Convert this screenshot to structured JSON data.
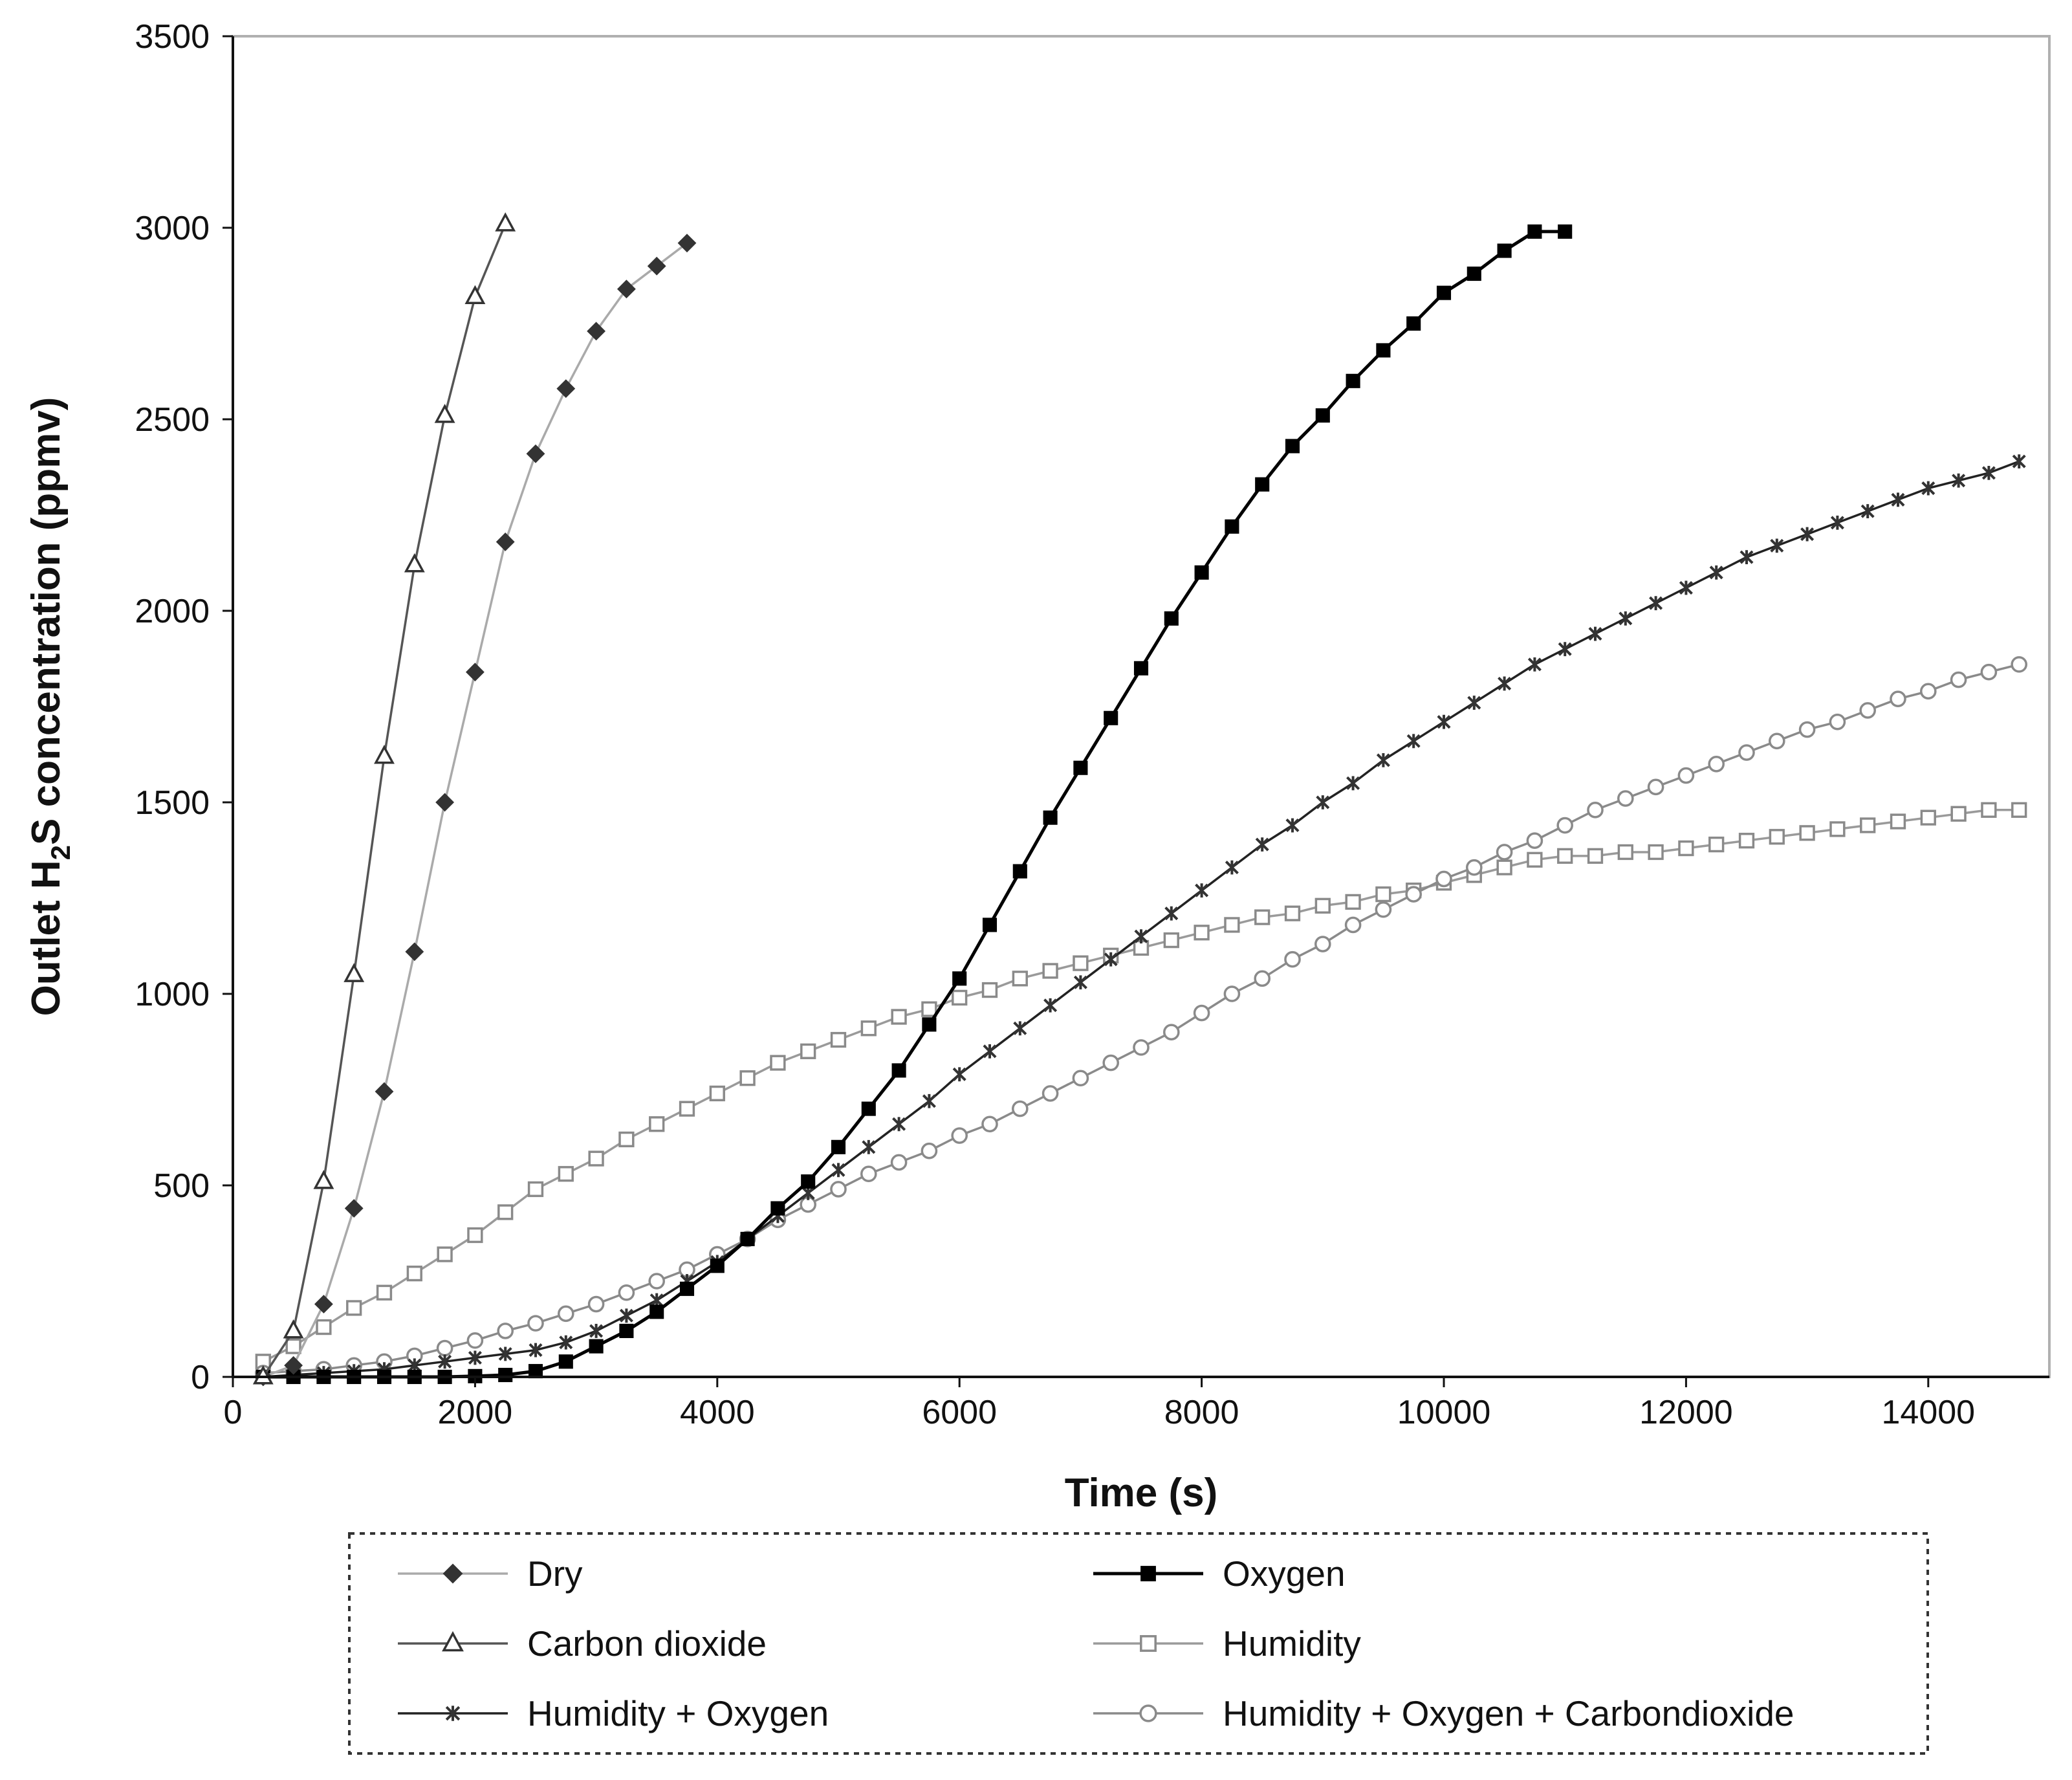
{
  "chart_data": {
    "type": "line",
    "title": "",
    "xlabel": "Time (s)",
    "ylabel_parts": [
      "Outlet H",
      "2",
      "S concentration (ppmv)"
    ],
    "xlim": [
      0,
      15000
    ],
    "ylim": [
      0,
      3500
    ],
    "xticks": [
      0,
      2000,
      4000,
      6000,
      8000,
      10000,
      12000,
      14000
    ],
    "yticks": [
      0,
      500,
      1000,
      1500,
      2000,
      2500,
      3000,
      3500
    ],
    "grid": false,
    "legend_position": "bottom",
    "series": [
      {
        "name": "Dry",
        "marker": "diamond",
        "color": "#aaaaaa",
        "marker_color": "#333333",
        "x": [
          250,
          500,
          750,
          1000,
          1250,
          1500,
          1750,
          2000,
          2250,
          2500,
          2750,
          3000,
          3250,
          3500,
          3750
        ],
        "y": [
          0,
          30,
          190,
          440,
          745,
          1110,
          1500,
          1840,
          2180,
          2410,
          2580,
          2730,
          2840,
          2900,
          2960
        ]
      },
      {
        "name": "Oxygen",
        "marker": "square-filled",
        "color": "#000000",
        "marker_color": "#000000",
        "x": [
          250,
          500,
          750,
          1000,
          1250,
          1500,
          1750,
          2000,
          2250,
          2500,
          2750,
          3000,
          3250,
          3500,
          3750,
          4000,
          4250,
          4500,
          4750,
          5000,
          5250,
          5500,
          5750,
          6000,
          6250,
          6500,
          6750,
          7000,
          7250,
          7500,
          7750,
          8000,
          8250,
          8500,
          8750,
          9000,
          9250,
          9500,
          9750,
          10000,
          10250,
          10500,
          10750,
          11000
        ],
        "y": [
          0,
          0,
          0,
          0,
          0,
          0,
          0,
          2,
          5,
          15,
          40,
          80,
          120,
          170,
          230,
          290,
          360,
          440,
          510,
          600,
          700,
          800,
          920,
          1040,
          1180,
          1320,
          1460,
          1590,
          1720,
          1850,
          1980,
          2100,
          2220,
          2330,
          2430,
          2510,
          2600,
          2680,
          2750,
          2830,
          2880,
          2940,
          2990,
          2990
        ]
      },
      {
        "name": "Carbon dioxide",
        "marker": "triangle-open",
        "color": "#555555",
        "marker_color": "#333333",
        "x": [
          250,
          500,
          750,
          1000,
          1250,
          1500,
          1750,
          2000,
          2250
        ],
        "y": [
          0,
          120,
          510,
          1050,
          1620,
          2120,
          2510,
          2820,
          3010
        ]
      },
      {
        "name": "Humidity",
        "marker": "square-open",
        "color": "#9a9a9a",
        "marker_color": "#8a8a8a",
        "x": [
          250,
          500,
          750,
          1000,
          1250,
          1500,
          1750,
          2000,
          2250,
          2500,
          2750,
          3000,
          3250,
          3500,
          3750,
          4000,
          4250,
          4500,
          4750,
          5000,
          5250,
          5500,
          5750,
          6000,
          6250,
          6500,
          6750,
          7000,
          7250,
          7500,
          7750,
          8000,
          8250,
          8500,
          8750,
          9000,
          9250,
          9500,
          9750,
          10000,
          10250,
          10500,
          10750,
          11000,
          11250,
          11500,
          11750,
          12000,
          12250,
          12500,
          12750,
          13000,
          13250,
          13500,
          13750,
          14000,
          14250,
          14500,
          14750
        ],
        "y": [
          40,
          80,
          130,
          180,
          220,
          270,
          320,
          370,
          430,
          490,
          530,
          570,
          620,
          660,
          700,
          740,
          780,
          820,
          850,
          880,
          910,
          940,
          960,
          990,
          1010,
          1040,
          1060,
          1080,
          1100,
          1120,
          1140,
          1160,
          1180,
          1200,
          1210,
          1230,
          1240,
          1260,
          1270,
          1290,
          1310,
          1330,
          1350,
          1360,
          1360,
          1370,
          1370,
          1380,
          1390,
          1400,
          1410,
          1420,
          1430,
          1440,
          1450,
          1460,
          1470,
          1480,
          1480
        ]
      },
      {
        "name": "Humidity + Oxygen",
        "marker": "star",
        "color": "#222222",
        "marker_color": "#333333",
        "x": [
          250,
          500,
          750,
          1000,
          1250,
          1500,
          1750,
          2000,
          2250,
          2500,
          2750,
          3000,
          3250,
          3500,
          3750,
          4000,
          4250,
          4500,
          4750,
          5000,
          5250,
          5500,
          5750,
          6000,
          6250,
          6500,
          6750,
          7000,
          7250,
          7500,
          7750,
          8000,
          8250,
          8500,
          8750,
          9000,
          9250,
          9500,
          9750,
          10000,
          10250,
          10500,
          10750,
          11000,
          11250,
          11500,
          11750,
          12000,
          12250,
          12500,
          12750,
          13000,
          13250,
          13500,
          13750,
          14000,
          14250,
          14500,
          14750
        ],
        "y": [
          0,
          5,
          10,
          15,
          20,
          30,
          40,
          50,
          60,
          70,
          90,
          120,
          160,
          200,
          250,
          300,
          360,
          420,
          480,
          540,
          600,
          660,
          720,
          790,
          850,
          910,
          970,
          1030,
          1090,
          1150,
          1210,
          1270,
          1330,
          1390,
          1440,
          1500,
          1550,
          1610,
          1660,
          1710,
          1760,
          1810,
          1860,
          1900,
          1940,
          1980,
          2020,
          2060,
          2100,
          2140,
          2170,
          2200,
          2230,
          2260,
          2290,
          2320,
          2340,
          2360,
          2390
        ]
      },
      {
        "name": "Humidity + Oxygen + Carbondioxide",
        "marker": "circle-open",
        "color": "#8a8a8a",
        "marker_color": "#8a8a8a",
        "x": [
          250,
          500,
          750,
          1000,
          1250,
          1500,
          1750,
          2000,
          2250,
          2500,
          2750,
          3000,
          3250,
          3500,
          3750,
          4000,
          4250,
          4500,
          4750,
          5000,
          5250,
          5500,
          5750,
          6000,
          6250,
          6500,
          6750,
          7000,
          7250,
          7500,
          7750,
          8000,
          8250,
          8500,
          8750,
          9000,
          9250,
          9500,
          9750,
          10000,
          10250,
          10500,
          10750,
          11000,
          11250,
          11500,
          11750,
          12000,
          12250,
          12500,
          12750,
          13000,
          13250,
          13500,
          13750,
          14000,
          14250,
          14500,
          14750
        ],
        "y": [
          10,
          15,
          20,
          30,
          40,
          55,
          75,
          95,
          120,
          140,
          165,
          190,
          220,
          250,
          280,
          320,
          360,
          410,
          450,
          490,
          530,
          560,
          590,
          630,
          660,
          700,
          740,
          780,
          820,
          860,
          900,
          950,
          1000,
          1040,
          1090,
          1130,
          1180,
          1220,
          1260,
          1300,
          1330,
          1370,
          1400,
          1440,
          1480,
          1510,
          1540,
          1570,
          1600,
          1630,
          1660,
          1690,
          1710,
          1740,
          1770,
          1790,
          1820,
          1840,
          1860
        ]
      }
    ]
  }
}
